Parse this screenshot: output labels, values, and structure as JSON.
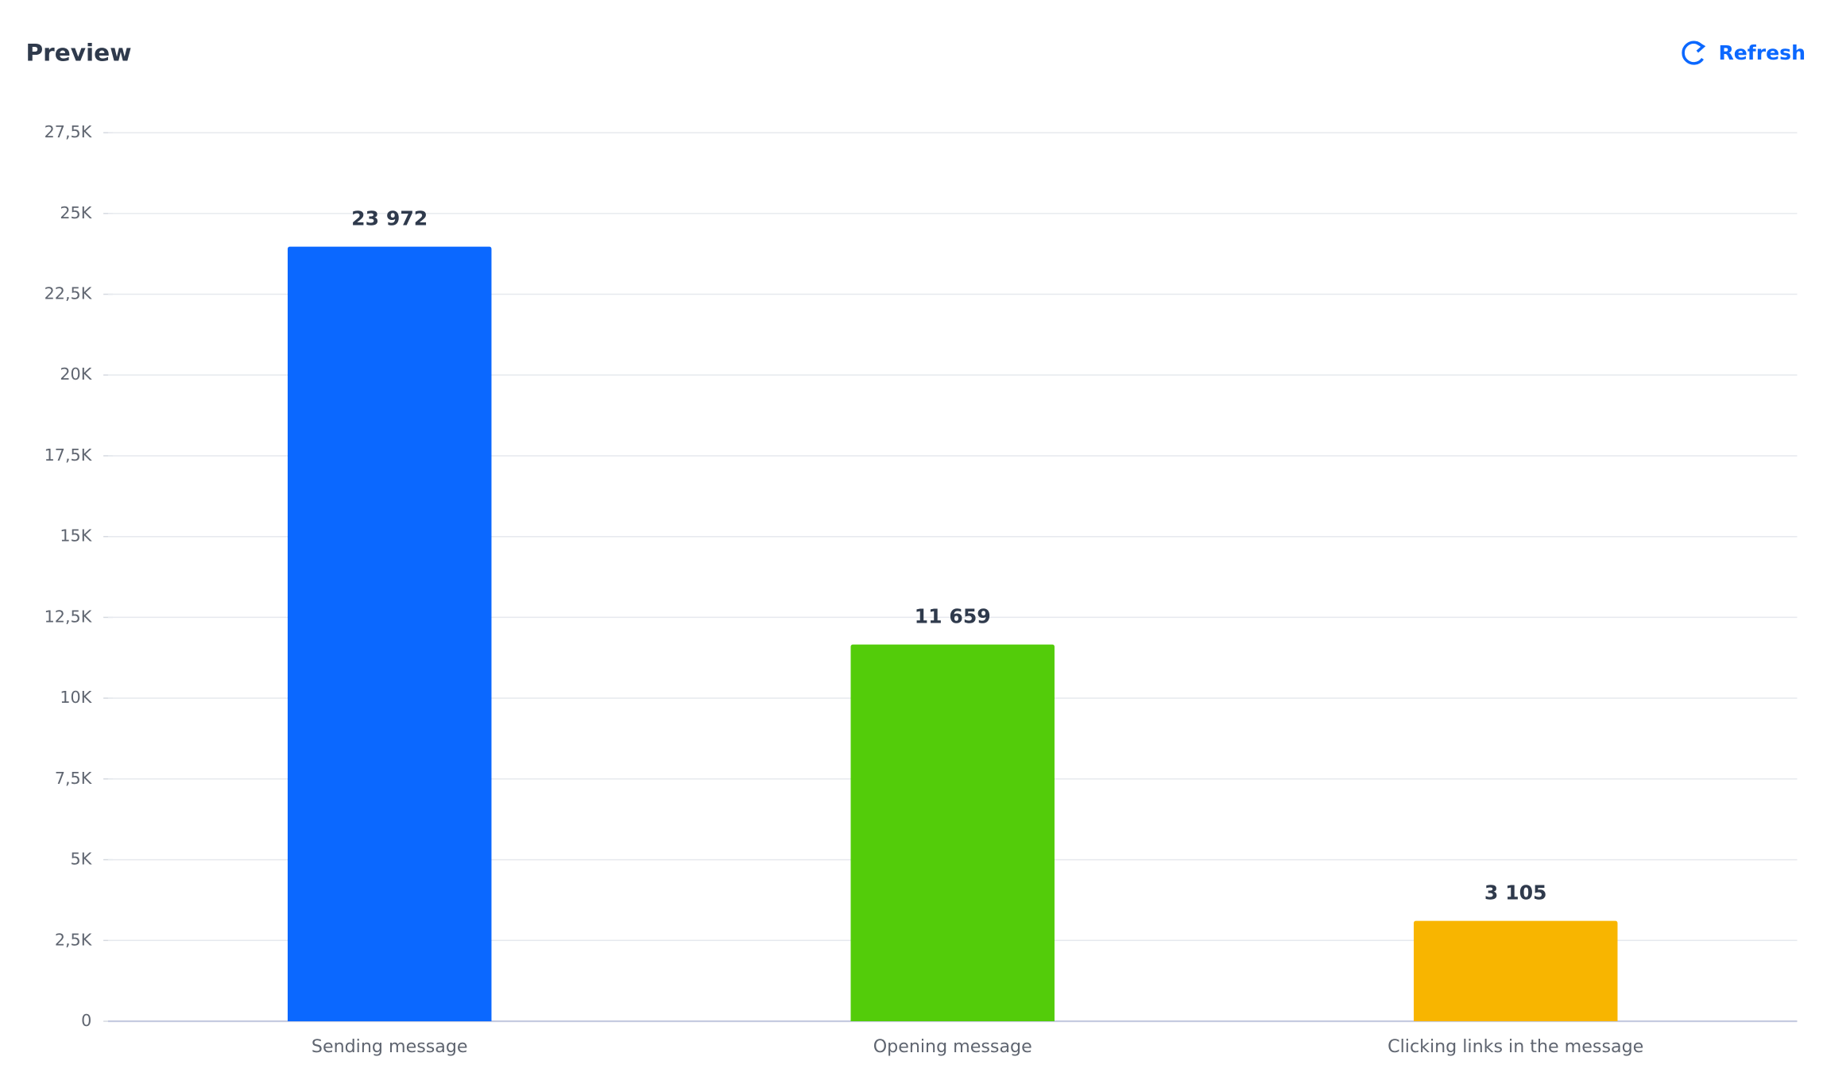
{
  "header": {
    "title": "Preview",
    "action": "Refresh"
  },
  "chart_data": {
    "type": "bar",
    "categories": [
      "Sending message",
      "Opening message",
      "Clicking links in the message"
    ],
    "values": [
      23972,
      11659,
      3105
    ],
    "value_labels": [
      "23 972",
      "11 659",
      "3 105"
    ],
    "colors": [
      "#0b68ff",
      "#53cc0a",
      "#f8b500"
    ],
    "ylim": [
      0,
      27500
    ],
    "yticks": [
      0,
      {
        "value": 2500,
        "label": "2,5K"
      },
      {
        "value": 5000,
        "label": "5K"
      },
      {
        "value": 7500,
        "label": "7,5K"
      },
      {
        "value": 10000,
        "label": "10K"
      },
      {
        "value": 12500,
        "label": "12,5K"
      },
      {
        "value": 15000,
        "label": "15K"
      },
      {
        "value": 17500,
        "label": "17,5K"
      },
      {
        "value": 20000,
        "label": "20K"
      },
      {
        "value": 22500,
        "label": "22,5K"
      },
      {
        "value": 25000,
        "label": "25K"
      },
      {
        "value": 27500,
        "label": "27,5K"
      }
    ],
    "grid": true
  }
}
